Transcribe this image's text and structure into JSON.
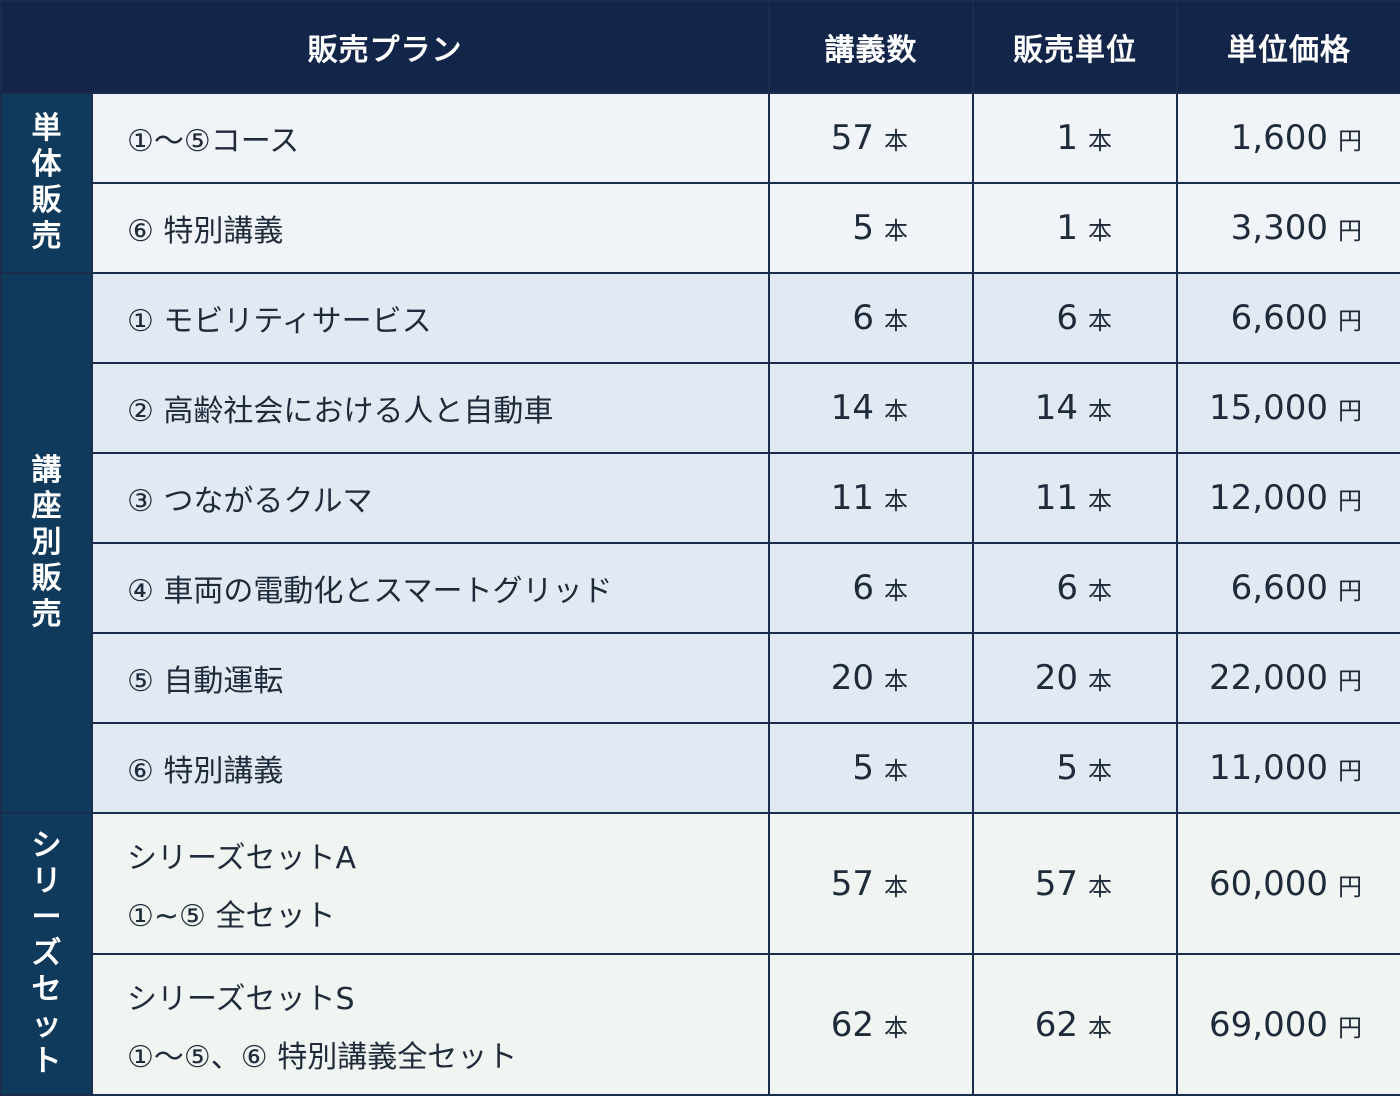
{
  "headers": {
    "plan": "販売プラン",
    "lectures": "講義数",
    "unit": "販売単位",
    "price": "単位価格"
  },
  "units": {
    "lectures": "本",
    "price": "円"
  },
  "groups": {
    "single": "単体販売",
    "course": "講座別販売",
    "series": "シリーズセット"
  },
  "single_rows": [
    {
      "plan": "①〜⑤コース",
      "lectures": "57",
      "unit": "1",
      "price": "1,600"
    },
    {
      "plan": "⑥ 特別講義",
      "lectures": "5",
      "unit": "1",
      "price": "3,300"
    }
  ],
  "course_rows": [
    {
      "plan": "① モビリティサービス",
      "lectures": "6",
      "unit": "6",
      "price": "6,600"
    },
    {
      "plan": "② 高齢社会における人と自動車",
      "lectures": "14",
      "unit": "14",
      "price": "15,000"
    },
    {
      "plan": "③ つながるクルマ",
      "lectures": "11",
      "unit": "11",
      "price": "12,000"
    },
    {
      "plan": "④ 車両の電動化とスマートグリッド",
      "lectures": "6",
      "unit": "6",
      "price": "6,600"
    },
    {
      "plan": "⑤ 自動運転",
      "lectures": "20",
      "unit": "20",
      "price": "22,000"
    },
    {
      "plan": "⑥ 特別講義",
      "lectures": "5",
      "unit": "5",
      "price": "11,000"
    }
  ],
  "series_rows": [
    {
      "plan_line1": "シリーズセットA",
      "plan_line2": "①~⑤ 全セット",
      "lectures": "57",
      "unit": "57",
      "price": "60,000"
    },
    {
      "plan_line1": "シリーズセットS",
      "plan_line2": "①〜⑤、⑥ 特別講義全セット",
      "lectures": "62",
      "unit": "62",
      "price": "69,000"
    }
  ]
}
